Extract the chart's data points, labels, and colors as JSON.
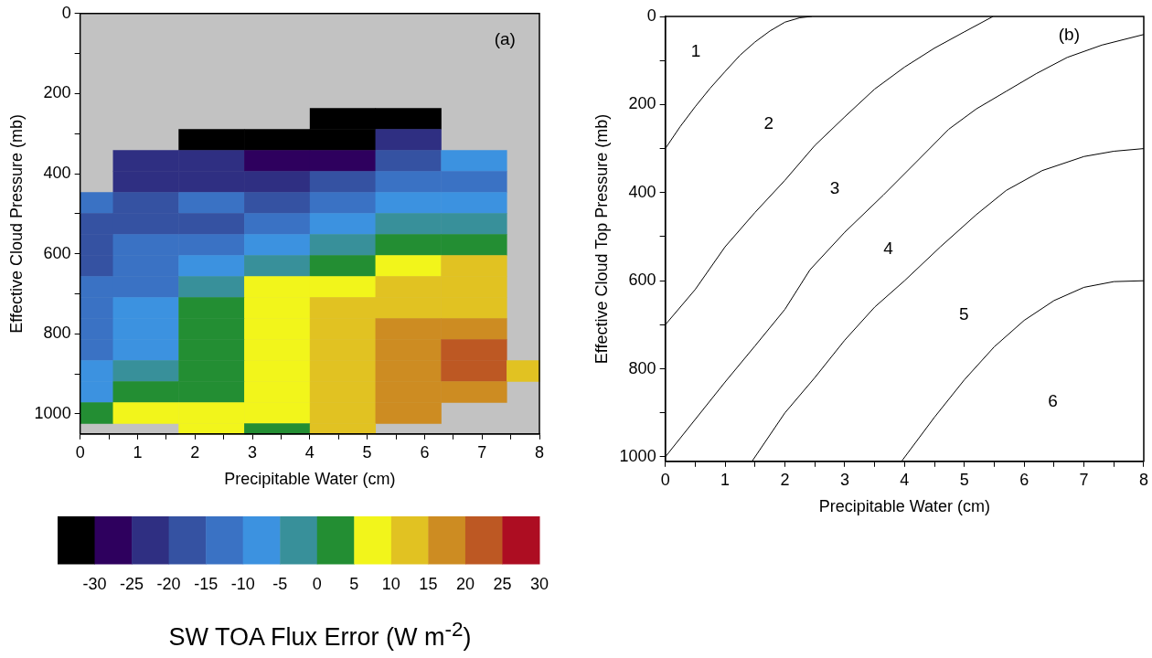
{
  "chart_data": [
    {
      "type": "heatmap",
      "xlabel": "Precipitable Water (cm)",
      "ylabel": "Effective Cloud Pressure (mb)",
      "x": [
        0,
        1.143,
        2.286,
        3.429,
        4.571,
        5.714,
        6.857,
        8
      ],
      "y": [
        262.5,
        315,
        367.5,
        420,
        472.5,
        525,
        577.5,
        630,
        682.5,
        735,
        787.5,
        840,
        892.5,
        945,
        997.5,
        1050
      ],
      "cells": [
        [
          null,
          null,
          null,
          null,
          -32.5,
          -32.5,
          null,
          null
        ],
        [
          null,
          null,
          -32.5,
          -32.5,
          -32.5,
          -22.5,
          null,
          null
        ],
        [
          null,
          -22.5,
          -22.5,
          -27.5,
          -27.5,
          -17.5,
          -7.5,
          null
        ],
        [
          null,
          -22.5,
          -22.5,
          -22.5,
          -17.5,
          -12.5,
          -12.5,
          null
        ],
        [
          -12.5,
          -17.5,
          -12.5,
          -17.5,
          -12.5,
          -7.5,
          -7.5,
          null
        ],
        [
          -17.5,
          -17.5,
          -17.5,
          -12.5,
          -7.5,
          -2.5,
          -2.5,
          null
        ],
        [
          -17.5,
          -12.5,
          -12.5,
          -7.5,
          -2.5,
          2.5,
          2.5,
          null
        ],
        [
          -17.5,
          -12.5,
          -7.5,
          -2.5,
          2.5,
          7.5,
          12.5,
          null
        ],
        [
          -12.5,
          -12.5,
          -2.5,
          7.5,
          7.5,
          12.5,
          12.5,
          null
        ],
        [
          -12.5,
          -7.5,
          2.5,
          7.5,
          12.5,
          12.5,
          12.5,
          null
        ],
        [
          -12.5,
          -7.5,
          2.5,
          7.5,
          12.5,
          17.5,
          17.5,
          null
        ],
        [
          -12.5,
          -7.5,
          2.5,
          7.5,
          12.5,
          17.5,
          22.5,
          null
        ],
        [
          -7.5,
          -2.5,
          2.5,
          7.5,
          12.5,
          17.5,
          22.5,
          12.5
        ],
        [
          -7.5,
          2.5,
          2.5,
          7.5,
          12.5,
          17.5,
          17.5,
          null
        ],
        [
          2.5,
          7.5,
          7.5,
          7.5,
          12.5,
          17.5,
          null,
          null
        ],
        [
          null,
          null,
          7.5,
          2.5,
          12.5,
          null,
          null,
          null
        ]
      ],
      "xlim": [
        0,
        8
      ],
      "ylim": [
        1050,
        0
      ],
      "xticks": [
        0,
        {
          "value": 0.5,
          "label": null
        },
        1,
        {
          "value": 1.5,
          "label": null
        },
        2,
        {
          "value": 2.5,
          "label": null
        },
        3,
        {
          "value": 3.5,
          "label": null
        },
        4,
        {
          "value": 4.5,
          "label": null
        },
        5,
        {
          "value": 5.5,
          "label": null
        },
        6,
        {
          "value": 6.5,
          "label": null
        },
        7,
        {
          "value": 7.5,
          "label": null
        },
        8
      ],
      "yticks": [
        0,
        {
          "value": 100,
          "label": null
        },
        200,
        {
          "value": 300,
          "label": null
        },
        400,
        {
          "value": 500,
          "label": null
        },
        600,
        {
          "value": 700,
          "label": null
        },
        800,
        {
          "value": 900,
          "label": null
        },
        1000
      ],
      "clim": [
        -35,
        30
      ],
      "cticks": [
        -30,
        -25,
        -20,
        -15,
        -10,
        -5,
        0,
        5,
        10,
        15,
        20,
        25,
        30
      ],
      "clabel": "SW TOA Flux Error (W m$^{-2}$)",
      "annotations": [
        "(a)"
      ]
    },
    {
      "type": "line",
      "xlabel": "Precipitable Water (cm)",
      "ylabel": "Effective Cloud Top Pressure (mb)",
      "marker": "none",
      "series": [
        {
          "color": "#000000",
          "x": [
            0,
            0.25,
            0.5,
            0.75,
            1,
            1.25,
            1.5,
            1.75,
            2,
            2.25,
            2.45
          ],
          "values": [
            300,
            250,
            205,
            163,
            125,
            88,
            58,
            33,
            13,
            3,
            0
          ]
        },
        {
          "color": "#000000",
          "x": [
            0,
            0.5,
            1,
            1.5,
            2,
            2.5,
            3,
            3.5,
            4,
            4.5,
            5,
            5.48
          ],
          "values": [
            700,
            620,
            523,
            445,
            372,
            293,
            228,
            165,
            115,
            72,
            35,
            0
          ]
        },
        {
          "color": "#000000",
          "x": [
            0,
            0.5,
            1,
            1.5,
            2,
            2.42,
            3,
            3.65,
            4.2,
            4.74,
            5.2,
            5.7,
            6.2,
            6.72,
            7.3,
            8
          ],
          "values": [
            1000,
            915,
            830,
            748,
            665,
            575,
            490,
            405,
            330,
            256,
            210,
            170,
            130,
            93,
            65,
            41
          ]
        },
        {
          "color": "#000000",
          "x": [
            1.45,
            2,
            2.5,
            3,
            3.5,
            4,
            4.6,
            5.2,
            5.7,
            6.3,
            7,
            7.5,
            8
          ],
          "values": [
            1010,
            900,
            820,
            735,
            660,
            600,
            523,
            450,
            395,
            350,
            318,
            306,
            300
          ]
        },
        {
          "color": "#000000",
          "x": [
            3.95,
            4.5,
            5,
            5.5,
            6,
            6.5,
            7,
            7.5,
            8
          ],
          "values": [
            1010,
            910,
            825,
            750,
            690,
            645,
            615,
            602,
            600
          ]
        }
      ],
      "xlim": [
        0,
        8
      ],
      "ylim": [
        1010,
        0
      ],
      "xticks": [
        0,
        {
          "value": 0.5,
          "label": null
        },
        1,
        {
          "value": 1.5,
          "label": null
        },
        2,
        {
          "value": 2.5,
          "label": null
        },
        3,
        {
          "value": 3.5,
          "label": null
        },
        4,
        {
          "value": 4.5,
          "label": null
        },
        5,
        {
          "value": 5.5,
          "label": null
        },
        6,
        {
          "value": 6.5,
          "label": null
        },
        7,
        {
          "value": 7.5,
          "label": null
        },
        8
      ],
      "yticks": [
        0,
        {
          "value": 100,
          "label": null
        },
        200,
        {
          "value": 300,
          "label": null
        },
        400,
        {
          "value": 500,
          "label": null
        },
        600,
        {
          "value": 700,
          "label": null
        },
        800,
        {
          "value": 900,
          "label": null
        },
        1000
      ],
      "annotations": [
        "(b)",
        "1",
        "2",
        "3",
        "4",
        "5",
        "6"
      ]
    }
  ]
}
